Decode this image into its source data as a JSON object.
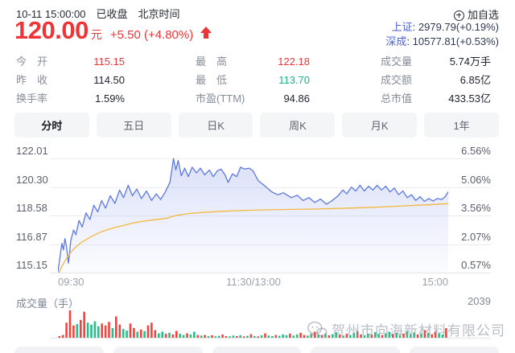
{
  "colors": {
    "up_red": "#ee3437",
    "down_green": "#17b387",
    "price_line": "#5d78e0",
    "avg_line": "#f5b83e",
    "fill_top": "rgba(99,125,228,0.24)",
    "fill_bottom": "rgba(99,125,228,0.02)",
    "bar_up": "#f4433c",
    "bar_down": "#2abd89",
    "index_name_blue": "#4f63d2"
  },
  "header": {
    "datetime": "10-11 15:00:00",
    "market_status": "已收盘",
    "timezone": "北京时间",
    "price": "120.00",
    "currency_unit": "元",
    "change": "+5.50 (+4.80%)",
    "add_watchlist": "加自选",
    "indices": [
      {
        "label": "上证",
        "value": ": 2979.79(+0.19%)"
      },
      {
        "label": "深成",
        "value": ": 10577.81(+0.53%)"
      }
    ]
  },
  "stats": {
    "cells": [
      {
        "label": "今　开",
        "value": "115.15",
        "color": "red"
      },
      {
        "label": "最　高",
        "value": "122.18",
        "color": "red"
      },
      {
        "label": "成交量",
        "value": "5.74万手",
        "color": "dark"
      },
      {
        "label": "昨　收",
        "value": "114.50",
        "color": "dark"
      },
      {
        "label": "最　低",
        "value": "113.70",
        "color": "green"
      },
      {
        "label": "成交额",
        "value": "6.85亿",
        "color": "dark"
      },
      {
        "label": "换手率",
        "value": "1.59%",
        "color": "dark"
      },
      {
        "label": "市盈(TTM)",
        "value": "94.86",
        "color": "dark"
      },
      {
        "label": "总市值",
        "value": "433.53亿",
        "color": "dark"
      }
    ]
  },
  "tabs": [
    {
      "name": "tab-minute",
      "label": "分时",
      "active": true
    },
    {
      "name": "tab-5day",
      "label": "五日",
      "active": false
    },
    {
      "name": "tab-daily-k",
      "label": "日K",
      "active": false
    },
    {
      "name": "tab-weekly-k",
      "label": "周K",
      "active": false
    },
    {
      "name": "tab-monthly-k",
      "label": "月K",
      "active": false
    },
    {
      "name": "tab-1year",
      "label": "1年",
      "active": false
    }
  ],
  "chart_data": {
    "type": "line",
    "x_ticks": [
      "09:30",
      "11:30/13:00",
      "15:00"
    ],
    "y_left_labels": [
      "122.01",
      "120.30",
      "118.58",
      "116.87",
      "115.15"
    ],
    "y_right_labels": [
      "6.56%",
      "5.06%",
      "3.56%",
      "2.07%",
      "0.57%"
    ],
    "prev_close": 114.5,
    "day_open": 115.15,
    "day_high": 122.18,
    "day_low": 113.7,
    "last": 120.0,
    "pct_axis": {
      "top": 6.56,
      "step": 1.5,
      "gridlines": 5
    },
    "series": [
      {
        "name": "price_pct",
        "points": [
          [
            0.0,
            0.6
          ],
          [
            0.006,
            1.5
          ],
          [
            0.01,
            2.1
          ],
          [
            0.014,
            1.75
          ],
          [
            0.018,
            2.35
          ],
          [
            0.022,
            1.9
          ],
          [
            0.027,
            1.05
          ],
          [
            0.033,
            2.25
          ],
          [
            0.04,
            2.8
          ],
          [
            0.046,
            2.55
          ],
          [
            0.054,
            3.3
          ],
          [
            0.062,
            2.95
          ],
          [
            0.072,
            3.7
          ],
          [
            0.082,
            3.35
          ],
          [
            0.092,
            4.1
          ],
          [
            0.102,
            3.75
          ],
          [
            0.112,
            4.35
          ],
          [
            0.122,
            3.95
          ],
          [
            0.134,
            4.6
          ],
          [
            0.146,
            4.2
          ],
          [
            0.158,
            4.9
          ],
          [
            0.168,
            4.5
          ],
          [
            0.18,
            5.15
          ],
          [
            0.191,
            4.6
          ],
          [
            0.202,
            4.95
          ],
          [
            0.214,
            4.45
          ],
          [
            0.227,
            4.85
          ],
          [
            0.24,
            4.35
          ],
          [
            0.252,
            4.7
          ],
          [
            0.263,
            4.4
          ],
          [
            0.275,
            4.8
          ],
          [
            0.287,
            5.3
          ],
          [
            0.296,
            6.55
          ],
          [
            0.302,
            5.95
          ],
          [
            0.308,
            6.45
          ],
          [
            0.316,
            5.65
          ],
          [
            0.325,
            6.05
          ],
          [
            0.334,
            5.6
          ],
          [
            0.344,
            6.1
          ],
          [
            0.355,
            5.8
          ],
          [
            0.365,
            6.05
          ],
          [
            0.376,
            5.7
          ],
          [
            0.388,
            5.95
          ],
          [
            0.398,
            5.6
          ],
          [
            0.408,
            5.9
          ],
          [
            0.418,
            6.0
          ],
          [
            0.428,
            5.7
          ],
          [
            0.436,
            5.3
          ],
          [
            0.447,
            5.75
          ],
          [
            0.458,
            5.6
          ],
          [
            0.468,
            6.1
          ],
          [
            0.478,
            6.0
          ],
          [
            0.49,
            6.05
          ],
          [
            0.5,
            5.9
          ],
          [
            0.513,
            5.4
          ],
          [
            0.528,
            5.15
          ],
          [
            0.548,
            4.8
          ],
          [
            0.563,
            4.65
          ],
          [
            0.578,
            4.75
          ],
          [
            0.598,
            4.5
          ],
          [
            0.613,
            4.62
          ],
          [
            0.628,
            4.35
          ],
          [
            0.643,
            4.5
          ],
          [
            0.658,
            4.25
          ],
          [
            0.673,
            4.42
          ],
          [
            0.688,
            4.15
          ],
          [
            0.703,
            4.35
          ],
          [
            0.718,
            4.6
          ],
          [
            0.73,
            4.9
          ],
          [
            0.74,
            4.7
          ],
          [
            0.752,
            5.05
          ],
          [
            0.763,
            4.85
          ],
          [
            0.774,
            5.15
          ],
          [
            0.785,
            4.85
          ],
          [
            0.796,
            5.1
          ],
          [
            0.807,
            4.9
          ],
          [
            0.818,
            5.15
          ],
          [
            0.829,
            4.9
          ],
          [
            0.84,
            5.1
          ],
          [
            0.851,
            4.8
          ],
          [
            0.862,
            5.0
          ],
          [
            0.873,
            4.65
          ],
          [
            0.884,
            4.85
          ],
          [
            0.895,
            4.5
          ],
          [
            0.906,
            4.65
          ],
          [
            0.917,
            4.35
          ],
          [
            0.928,
            4.55
          ],
          [
            0.939,
            4.3
          ],
          [
            0.95,
            4.45
          ],
          [
            0.961,
            4.32
          ],
          [
            0.972,
            4.45
          ],
          [
            0.983,
            4.4
          ],
          [
            0.992,
            4.55
          ],
          [
            1.0,
            4.8
          ]
        ]
      },
      {
        "name": "avg_price_pct",
        "points": [
          [
            0.0,
            0.4
          ],
          [
            0.01,
            0.9
          ],
          [
            0.025,
            1.4
          ],
          [
            0.04,
            1.8
          ],
          [
            0.06,
            2.15
          ],
          [
            0.085,
            2.45
          ],
          [
            0.11,
            2.7
          ],
          [
            0.14,
            2.9
          ],
          [
            0.17,
            3.05
          ],
          [
            0.2,
            3.2
          ],
          [
            0.24,
            3.32
          ],
          [
            0.28,
            3.42
          ],
          [
            0.3,
            3.55
          ],
          [
            0.33,
            3.65
          ],
          [
            0.37,
            3.72
          ],
          [
            0.42,
            3.78
          ],
          [
            0.48,
            3.83
          ],
          [
            0.54,
            3.86
          ],
          [
            0.6,
            3.88
          ],
          [
            0.66,
            3.9
          ],
          [
            0.72,
            3.93
          ],
          [
            0.78,
            3.97
          ],
          [
            0.84,
            4.02
          ],
          [
            0.9,
            4.08
          ],
          [
            0.95,
            4.12
          ],
          [
            1.0,
            4.18
          ]
        ]
      }
    ],
    "volume": {
      "label": "成交量（手）",
      "max_label": "2039",
      "bars": [
        [
          0.06,
          1
        ],
        [
          0.1,
          1
        ],
        [
          0.55,
          1
        ],
        [
          1.0,
          1
        ],
        [
          0.45,
          1
        ],
        [
          0.5,
          0
        ],
        [
          0.65,
          1
        ],
        [
          0.95,
          1
        ],
        [
          0.55,
          0
        ],
        [
          0.48,
          0
        ],
        [
          0.6,
          0
        ],
        [
          0.42,
          0
        ],
        [
          0.52,
          1
        ],
        [
          0.45,
          1
        ],
        [
          0.58,
          1
        ],
        [
          0.35,
          0
        ],
        [
          0.78,
          1
        ],
        [
          0.48,
          1
        ],
        [
          0.32,
          0
        ],
        [
          0.26,
          0
        ],
        [
          0.52,
          1
        ],
        [
          0.36,
          1
        ],
        [
          0.22,
          0
        ],
        [
          0.3,
          1
        ],
        [
          0.24,
          0
        ],
        [
          0.45,
          1
        ],
        [
          0.55,
          1
        ],
        [
          0.28,
          1
        ],
        [
          0.16,
          0
        ],
        [
          0.22,
          0
        ],
        [
          0.14,
          1
        ],
        [
          0.18,
          0
        ],
        [
          0.12,
          1
        ],
        [
          0.25,
          1
        ],
        [
          0.14,
          0
        ],
        [
          0.1,
          0
        ],
        [
          0.16,
          1
        ],
        [
          0.12,
          0
        ],
        [
          0.22,
          0
        ],
        [
          0.1,
          1
        ],
        [
          0.08,
          0
        ],
        [
          0.1,
          1
        ],
        [
          0.06,
          0
        ],
        [
          0.09,
          1
        ],
        [
          0.05,
          0
        ],
        [
          0.07,
          0
        ],
        [
          0.12,
          1
        ],
        [
          0.06,
          1
        ],
        [
          0.05,
          0
        ],
        [
          0.08,
          0
        ],
        [
          0.06,
          1
        ],
        [
          0.09,
          0
        ],
        [
          0.05,
          1
        ],
        [
          0.07,
          0
        ],
        [
          0.13,
          1
        ],
        [
          0.06,
          0
        ],
        [
          0.05,
          1
        ],
        [
          0.09,
          0
        ],
        [
          0.16,
          1
        ],
        [
          0.08,
          0
        ],
        [
          0.06,
          0
        ],
        [
          0.1,
          1
        ],
        [
          0.07,
          0
        ],
        [
          0.12,
          0
        ],
        [
          0.09,
          0
        ],
        [
          0.15,
          1
        ],
        [
          0.08,
          0
        ],
        [
          0.12,
          0
        ],
        [
          0.18,
          1
        ],
        [
          0.1,
          1
        ],
        [
          0.08,
          0
        ],
        [
          0.14,
          0
        ],
        [
          0.22,
          1
        ],
        [
          0.12,
          0
        ],
        [
          0.1,
          1
        ],
        [
          0.16,
          0
        ],
        [
          0.09,
          1
        ],
        [
          0.13,
          0
        ],
        [
          0.2,
          0
        ],
        [
          0.11,
          1
        ],
        [
          0.08,
          0
        ],
        [
          0.14,
          1
        ],
        [
          0.1,
          0
        ],
        [
          0.18,
          0
        ],
        [
          0.24,
          1
        ],
        [
          0.12,
          1
        ],
        [
          0.09,
          0
        ],
        [
          0.15,
          0
        ],
        [
          0.11,
          1
        ],
        [
          0.2,
          0
        ],
        [
          0.14,
          0
        ],
        [
          0.1,
          1
        ],
        [
          0.16,
          0
        ],
        [
          0.22,
          0
        ],
        [
          0.13,
          1
        ],
        [
          0.18,
          0
        ],
        [
          0.1,
          0
        ],
        [
          0.15,
          1
        ],
        [
          0.24,
          0
        ],
        [
          0.14,
          0
        ],
        [
          0.19,
          0
        ],
        [
          0.12,
          1
        ],
        [
          0.16,
          0
        ],
        [
          0.28,
          1
        ],
        [
          0.18,
          0
        ],
        [
          0.13,
          1
        ],
        [
          0.22,
          1
        ],
        [
          0.16,
          0
        ],
        [
          0.12,
          0
        ],
        [
          0.35,
          1
        ]
      ]
    }
  },
  "watermark": {
    "text": "贺州市向海新材料有限公司"
  },
  "footer": {
    "placeholder_count": 5
  }
}
